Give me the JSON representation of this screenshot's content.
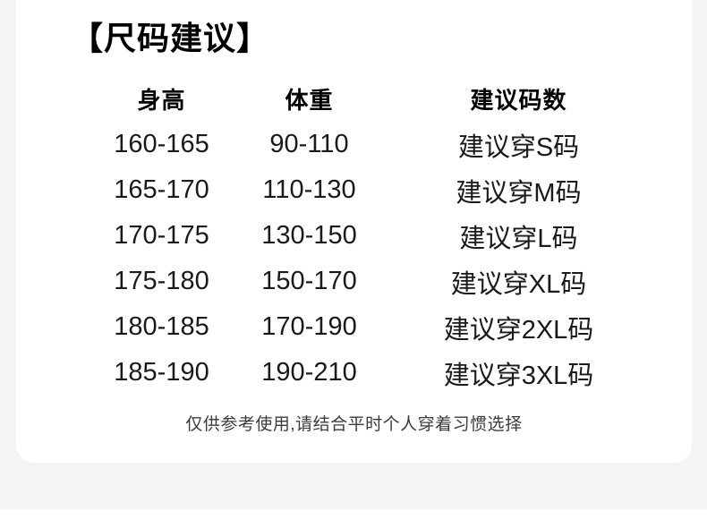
{
  "section": {
    "title": "【尺码建议】",
    "note": "仅供参考使用,请结合平时个人穿着习惯选择"
  },
  "size_table": {
    "headers": [
      "身高",
      "体重",
      "建议码数"
    ],
    "rows": [
      [
        "160-165",
        "90-110",
        "建议穿S码"
      ],
      [
        "165-170",
        "110-130",
        "建议穿M码"
      ],
      [
        "170-175",
        "130-150",
        "建议穿L码"
      ],
      [
        "175-180",
        "150-170",
        "建议穿XL码"
      ],
      [
        "180-185",
        "170-190",
        "建议穿2XL码"
      ],
      [
        "185-190",
        "190-210",
        "建议穿3XL码"
      ]
    ]
  },
  "colors": {
    "page_bg": "#f4f4f5",
    "card_bg": "#ffffff",
    "bottom_bg": "#ffffff",
    "title": "#000000",
    "text": "#1a1a1a",
    "muted": "#3b3b3b"
  }
}
